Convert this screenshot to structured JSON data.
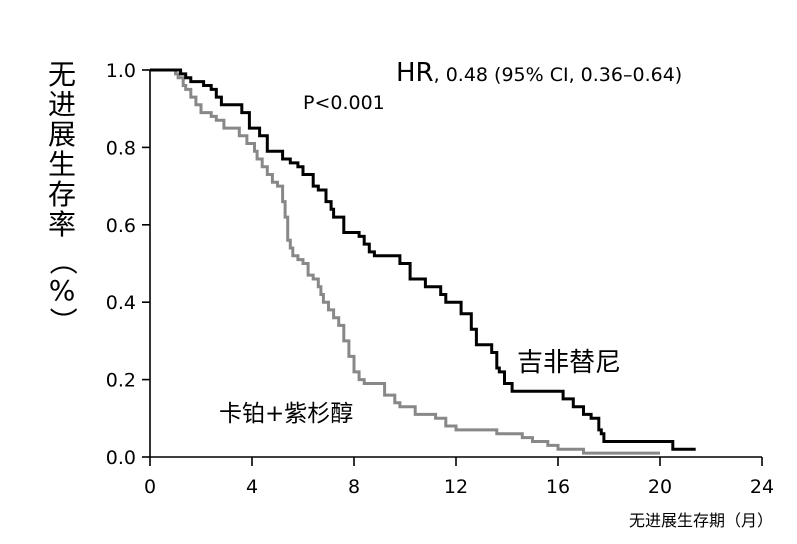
{
  "chart_data": {
    "type": "line",
    "step": true,
    "ylabel_chars": [
      "无",
      "进",
      "展",
      "生",
      "存",
      "率",
      "（",
      "%",
      "）"
    ],
    "xlabel": "无进展生存期（月）",
    "xlim": [
      0,
      24
    ],
    "ylim": [
      0,
      1.0
    ],
    "x_ticks": [
      "0",
      "4",
      "8",
      "12",
      "16",
      "20",
      "24"
    ],
    "y_ticks": [
      "0.0",
      "0.2",
      "0.4",
      "0.6",
      "0.8",
      "1.0"
    ],
    "annotations": {
      "hr_prefix": "HR",
      "hr_rest": ", 0.48 (95% CI, 0.36–0.64)",
      "p_value": "P<0.001"
    },
    "series": [
      {
        "name": "吉非替尼",
        "color": "#000000",
        "x": [
          0,
          1.2,
          1.4,
          1.6,
          2.1,
          2.4,
          2.6,
          2.8,
          3.6,
          3.9,
          4.3,
          4.6,
          5.2,
          5.5,
          5.8,
          6.0,
          6.4,
          6.6,
          6.9,
          7.1,
          7.2,
          7.6,
          7.8,
          8.0,
          8.2,
          8.4,
          8.6,
          8.8,
          9.2,
          9.8,
          10.2,
          10.8,
          11.2,
          11.4,
          11.6,
          12.2,
          12.6,
          12.8,
          13.0,
          13.4,
          13.6,
          13.7,
          13.9,
          14.2,
          14.8,
          15.8,
          16.2,
          16.6,
          17.0,
          17.3,
          17.6,
          17.7,
          17.8,
          18.0,
          18.6,
          19.2,
          20.0,
          20.5,
          21.4
        ],
        "y": [
          1.0,
          0.99,
          0.98,
          0.97,
          0.96,
          0.95,
          0.93,
          0.91,
          0.89,
          0.85,
          0.83,
          0.79,
          0.77,
          0.76,
          0.75,
          0.73,
          0.7,
          0.69,
          0.66,
          0.64,
          0.62,
          0.58,
          0.58,
          0.58,
          0.57,
          0.55,
          0.53,
          0.52,
          0.52,
          0.5,
          0.46,
          0.44,
          0.44,
          0.42,
          0.4,
          0.37,
          0.33,
          0.29,
          0.29,
          0.27,
          0.23,
          0.22,
          0.19,
          0.17,
          0.17,
          0.17,
          0.15,
          0.13,
          0.11,
          0.1,
          0.07,
          0.06,
          0.04,
          0.04,
          0.04,
          0.04,
          0.04,
          0.02,
          0.02
        ]
      },
      {
        "name": "卡铂+紫杉醇",
        "color": "#888888",
        "x": [
          0,
          1.0,
          1.1,
          1.3,
          1.4,
          1.6,
          1.8,
          2.0,
          2.4,
          2.6,
          2.9,
          3.5,
          3.8,
          4.1,
          4.2,
          4.4,
          4.6,
          4.8,
          5.0,
          5.2,
          5.3,
          5.4,
          5.5,
          5.6,
          5.8,
          6.0,
          6.2,
          6.4,
          6.6,
          6.7,
          6.8,
          7.0,
          7.2,
          7.4,
          7.6,
          7.8,
          8.0,
          8.2,
          8.4,
          9.2,
          9.6,
          9.8,
          10.0,
          10.4,
          11.2,
          11.6,
          12.0,
          12.4,
          13.0,
          13.6,
          14.0,
          14.6,
          15.0,
          15.6,
          16.0,
          16.5,
          17.0,
          18.0,
          19.0,
          20.0
        ],
        "y": [
          1.0,
          0.99,
          0.98,
          0.96,
          0.95,
          0.93,
          0.91,
          0.89,
          0.88,
          0.87,
          0.85,
          0.83,
          0.81,
          0.79,
          0.77,
          0.75,
          0.73,
          0.71,
          0.7,
          0.66,
          0.62,
          0.56,
          0.54,
          0.52,
          0.51,
          0.5,
          0.47,
          0.46,
          0.44,
          0.42,
          0.4,
          0.38,
          0.36,
          0.34,
          0.3,
          0.26,
          0.22,
          0.2,
          0.19,
          0.16,
          0.14,
          0.13,
          0.13,
          0.11,
          0.1,
          0.08,
          0.07,
          0.07,
          0.07,
          0.06,
          0.06,
          0.05,
          0.04,
          0.03,
          0.02,
          0.02,
          0.01,
          0.01,
          0.01,
          0.01
        ]
      }
    ]
  }
}
